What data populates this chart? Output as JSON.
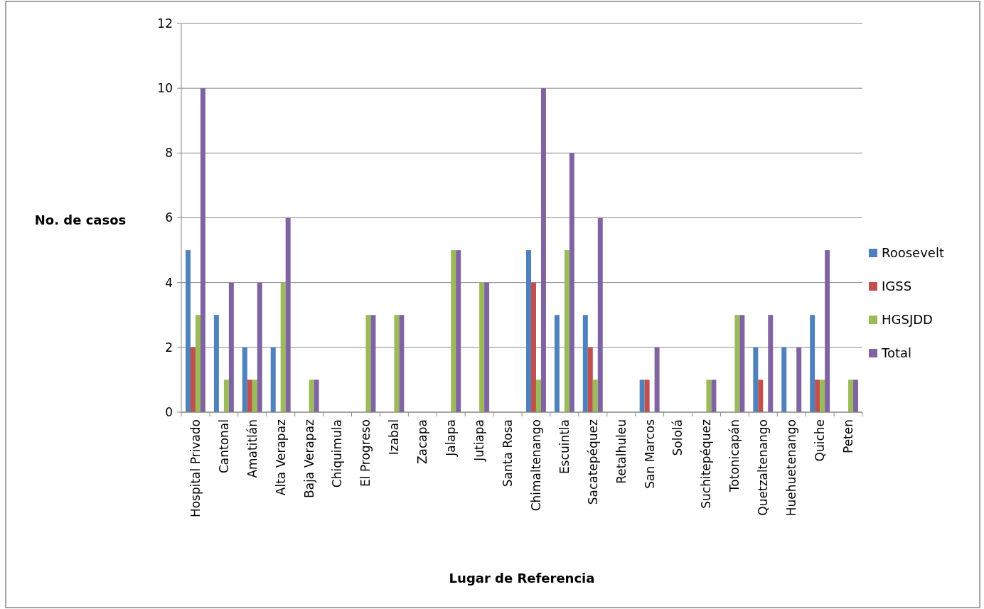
{
  "chart_data": {
    "type": "bar",
    "xlabel": "Lugar de Referencia",
    "ylabel": "No. de casos",
    "categories": [
      "Hospital Privado",
      "Cantonal",
      "Amatitlán",
      "Alta Verapaz",
      "Baja Verapaz",
      "Chiquimula",
      "El Progreso",
      "Izabal",
      "Zacapa",
      "Jalapa",
      "Jutiapa",
      "Santa Rosa",
      "Chimaltenango",
      "Escuintla",
      "Sacatepéquez",
      "Retalhuleu",
      "San Marcos",
      "Sololá",
      "Suchitepéquez",
      "Totonicapán",
      "Quetzaltenango",
      "Huehuetenango",
      "Quiche",
      "Peten"
    ],
    "series": [
      {
        "name": "Roosevelt",
        "color": "#4f81bd",
        "values": [
          5,
          3,
          2,
          2,
          0,
          0,
          0,
          0,
          0,
          0,
          0,
          0,
          5,
          3,
          3,
          0,
          1,
          0,
          0,
          0,
          2,
          2,
          3,
          0
        ]
      },
      {
        "name": "IGSS",
        "color": "#c0504d",
        "values": [
          2,
          0,
          1,
          0,
          0,
          0,
          0,
          0,
          0,
          0,
          0,
          0,
          4,
          0,
          2,
          0,
          1,
          0,
          0,
          0,
          1,
          0,
          1,
          0
        ]
      },
      {
        "name": "HGSJDD",
        "color": "#9bbb59",
        "values": [
          3,
          1,
          1,
          4,
          1,
          0,
          3,
          3,
          0,
          5,
          4,
          0,
          1,
          5,
          1,
          0,
          0,
          0,
          1,
          3,
          0,
          0,
          1,
          1
        ]
      },
      {
        "name": "Total",
        "color": "#8064a2",
        "values": [
          10,
          4,
          4,
          6,
          1,
          0,
          3,
          3,
          0,
          5,
          4,
          0,
          10,
          8,
          6,
          0,
          2,
          0,
          1,
          3,
          3,
          2,
          5,
          1
        ]
      }
    ],
    "ylim": [
      0,
      12
    ],
    "yticks": [
      0,
      2,
      4,
      6,
      8,
      10,
      12
    ],
    "grid": "y",
    "legend": "right"
  }
}
